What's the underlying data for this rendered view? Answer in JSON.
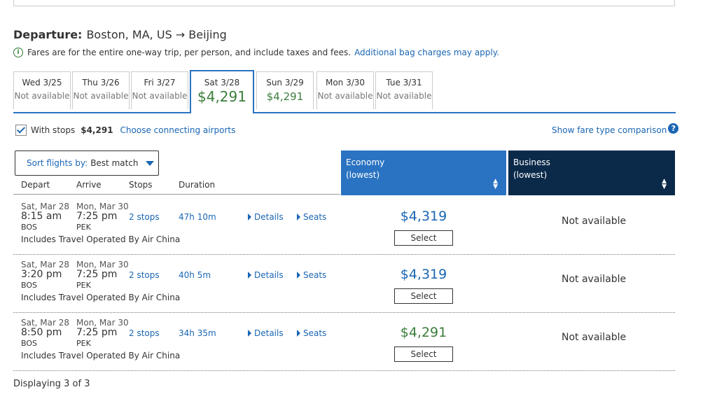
{
  "departure": {
    "label": "Departure:",
    "route": "Boston, MA, US → Beijing"
  },
  "info": {
    "text": "Fares are for the entire one-way trip, per person, and include taxes and fees.",
    "link": "Additional bag charges may apply."
  },
  "dates": [
    {
      "label": "Wed 3/25",
      "value": "Not available"
    },
    {
      "label": "Thu 3/26",
      "value": "Not available"
    },
    {
      "label": "Fri 3/27",
      "value": "Not available"
    },
    {
      "label": "Sat 3/28",
      "value": "$4,291",
      "active": true
    },
    {
      "label": "Sun 3/29",
      "value": "$4,291"
    },
    {
      "label": "Mon 3/30",
      "value": "Not available"
    },
    {
      "label": "Tue 3/31",
      "value": "Not available"
    }
  ],
  "filter": {
    "with_stops_label": "With stops",
    "with_stops_price": "$4,291",
    "choose_airports": "Choose connecting airports",
    "compare_link": "Show fare type comparison",
    "help_icon": "?"
  },
  "sort": {
    "label": "Sort flights by:",
    "value": "Best match"
  },
  "columns": {
    "depart": "Depart",
    "arrive": "Arrive",
    "stops": "Stops",
    "duration": "Duration"
  },
  "cabins": {
    "economy": {
      "name": "Economy",
      "sub": "(lowest)"
    },
    "business": {
      "name": "Business",
      "sub": "(lowest)"
    }
  },
  "flights": [
    {
      "dep_date": "Sat, Mar 28",
      "dep_time": "8:15 am",
      "dep_code": "BOS",
      "arr_date": "Mon, Mar 30",
      "arr_time": "7:25 pm",
      "arr_code": "PEK",
      "stops": "2 stops",
      "duration": "47h 10m",
      "details": "Details",
      "seats": "Seats",
      "operator": "Includes Travel Operated By Air China",
      "economy_price": "$4,319",
      "select": "Select",
      "business": "Not available"
    },
    {
      "dep_date": "Sat, Mar 28",
      "dep_time": "3:20 pm",
      "dep_code": "BOS",
      "arr_date": "Mon, Mar 30",
      "arr_time": "7:25 pm",
      "arr_code": "PEK",
      "stops": "2 stops",
      "duration": "40h 5m",
      "details": "Details",
      "seats": "Seats",
      "operator": "Includes Travel Operated By Air China",
      "economy_price": "$4,319",
      "select": "Select",
      "business": "Not available"
    },
    {
      "dep_date": "Sat, Mar 28",
      "dep_time": "8:50 pm",
      "dep_code": "BOS",
      "arr_date": "Mon, Mar 30",
      "arr_time": "7:25 pm",
      "arr_code": "PEK",
      "stops": "2 stops",
      "duration": "34h 35m",
      "details": "Details",
      "seats": "Seats",
      "operator": "Includes Travel Operated By Air China",
      "economy_price": "$4,291",
      "select": "Select",
      "business": "Not available"
    }
  ],
  "footer": "Displaying 3 of 3",
  "colors": {
    "link": "#1a66b3",
    "price_best": "#3b7d3b",
    "economy_header": "#2a73c2",
    "business_header": "#0b2a4a"
  }
}
